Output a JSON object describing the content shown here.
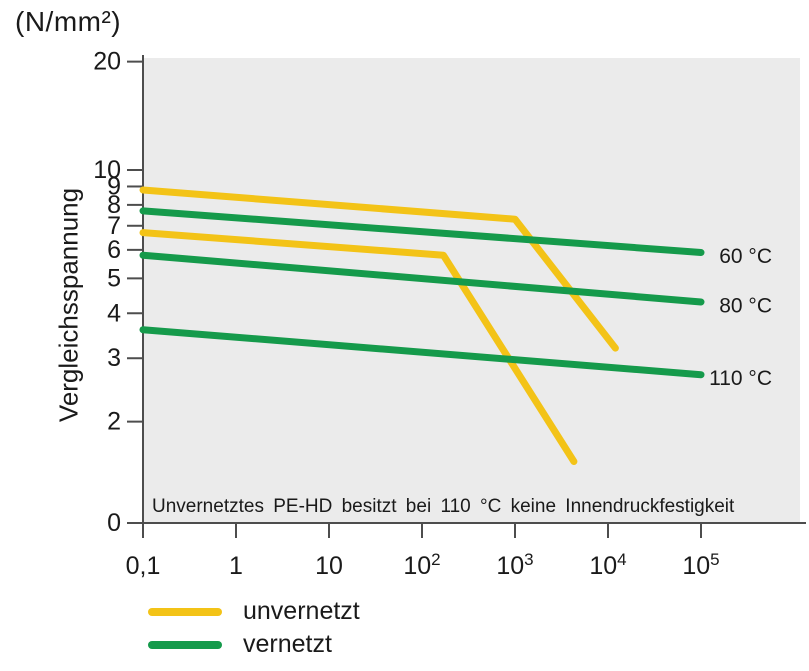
{
  "chart_data": {
    "type": "line",
    "y_unit": "(N/mm²)",
    "ylabel": "Vergleichsspannung",
    "x_scale": "log",
    "y_scale": "log",
    "x_range": [
      0.1,
      100000
    ],
    "y_axis_top_value": 20,
    "x_ticks": [
      {
        "value": 0.1,
        "label": "0,1"
      },
      {
        "value": 1,
        "label": "1"
      },
      {
        "value": 10,
        "label": "10"
      },
      {
        "value": 100,
        "label": "10",
        "exp": "2"
      },
      {
        "value": 1000,
        "label": "10",
        "exp": "3"
      },
      {
        "value": 10000,
        "label": "10",
        "exp": "4"
      },
      {
        "value": 100000,
        "label": "10",
        "exp": "5"
      }
    ],
    "y_ticks": [
      20,
      10,
      9,
      8,
      7,
      6,
      5,
      4,
      3,
      2
    ],
    "y_origin_label": "0",
    "series": [
      {
        "name": "unvernetzt 60 °C",
        "group": "unvernetzt",
        "points": [
          [
            0.1,
            8.8
          ],
          [
            1000,
            7.3
          ],
          [
            12000,
            3.2
          ]
        ]
      },
      {
        "name": "unvernetzt 80 °C",
        "group": "unvernetzt",
        "points": [
          [
            0.1,
            6.7
          ],
          [
            170,
            5.8
          ],
          [
            4300,
            1.55
          ]
        ]
      },
      {
        "name": "vernetzt 60 °C",
        "group": "vernetzt",
        "right_label": "60 °C",
        "points": [
          [
            0.1,
            7.7
          ],
          [
            100000,
            5.9
          ]
        ]
      },
      {
        "name": "vernetzt 80 °C",
        "group": "vernetzt",
        "right_label": "80 °C",
        "points": [
          [
            0.1,
            5.8
          ],
          [
            100000,
            4.3
          ]
        ]
      },
      {
        "name": "vernetzt 110 °C",
        "group": "vernetzt",
        "right_label": "110 °C",
        "points": [
          [
            0.1,
            3.6
          ],
          [
            100000,
            2.7
          ]
        ]
      }
    ],
    "annotation": "Unvernetztes PE-HD besitzt bei 110 °C keine Innendruckfestigkeit",
    "legend": [
      {
        "label": "unvernetzt",
        "color": "#F3C317"
      },
      {
        "label": "vernetzt",
        "color": "#159A4B"
      }
    ],
    "colors": {
      "unvernetzt": "#F3C317",
      "vernetzt": "#159A4B",
      "plot_background": "#EBEBEB",
      "axis": "#4D4D4D",
      "text": "#1A1A1A"
    }
  }
}
